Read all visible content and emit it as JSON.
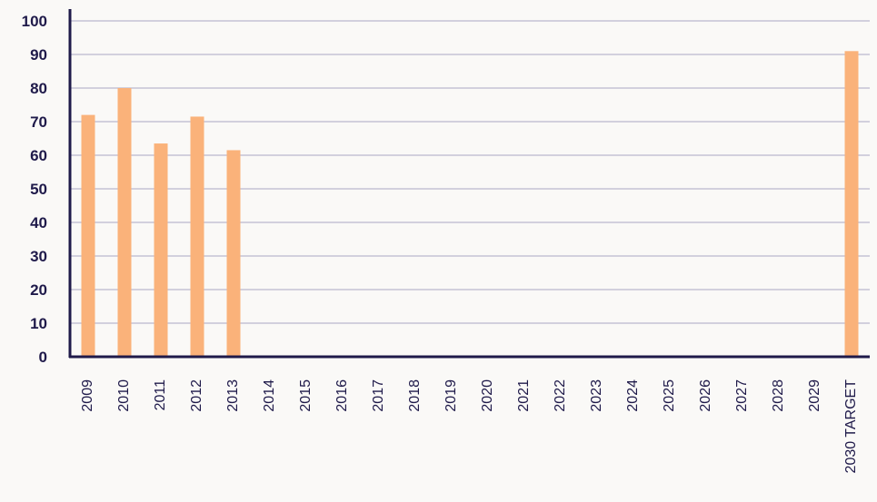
{
  "chart_data": {
    "type": "bar",
    "title": "",
    "xlabel": "",
    "ylabel": "",
    "categories": [
      "2009",
      "2010",
      "2011",
      "2012",
      "2013",
      "2014",
      "2015",
      "2016",
      "2017",
      "2018",
      "2019",
      "2020",
      "2021",
      "2022",
      "2023",
      "2024",
      "2025",
      "2026",
      "2027",
      "2028",
      "2029",
      "2030 TARGET"
    ],
    "values": [
      72,
      80,
      63.5,
      71.5,
      61.5,
      null,
      null,
      null,
      null,
      null,
      null,
      null,
      null,
      null,
      null,
      null,
      null,
      null,
      null,
      null,
      null,
      91
    ],
    "ylim": [
      0,
      100
    ],
    "yticks": [
      0,
      10,
      20,
      30,
      40,
      50,
      60,
      70,
      80,
      90,
      100
    ],
    "grid": "horizontal",
    "legend": "none",
    "colors": {
      "bar": "#fab27a",
      "axis": "#1f1a4a",
      "grid": "#a9a6c3",
      "text": "#1f1a4a",
      "background": "#faf9f7"
    }
  }
}
